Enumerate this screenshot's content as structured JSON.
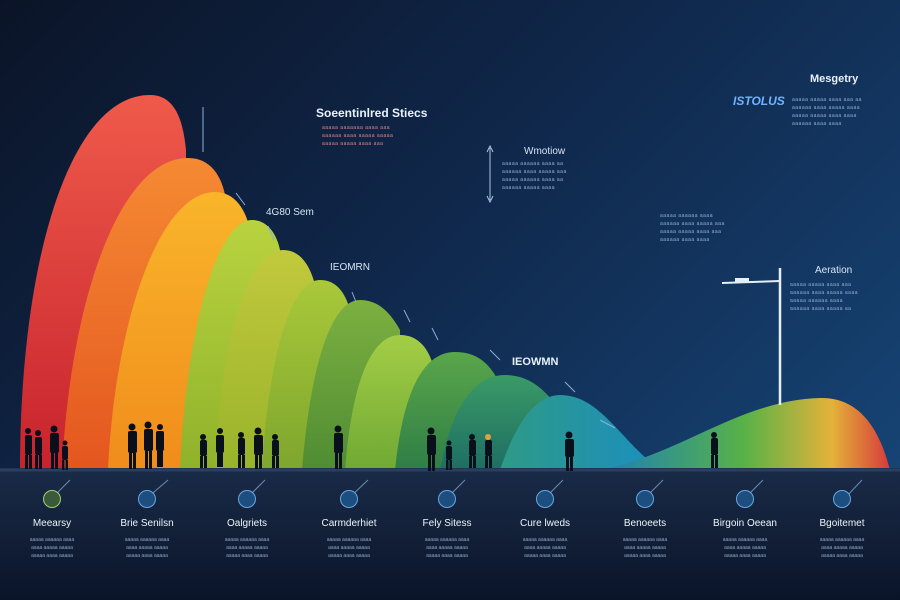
{
  "labels": {
    "top_center": "Soeentinlred Stiecs",
    "top_right_title": "Mesgetry",
    "top_right_brand": "ISTOLUS",
    "mid_value": "4G80 Sem",
    "mid_tag": "IEOMRN",
    "center_title": "Wmotiow",
    "center_big": "IEOWMN",
    "right_mid": "Aeration"
  },
  "notes": {
    "top_center": [
      "aaaaa aaaaaaa aaaa aaa",
      "aaaaaa aaaa aaaaa aaaaa",
      "aaaaa aaaaa aaaa aaa"
    ],
    "top_right": [
      "aaaaa aaaaa aaaa aaa aa",
      "aaaaaa aaaa aaaaa aaaa",
      "aaaaa aaaaa aaaa aaaa",
      "aaaaaa aaaa aaaa"
    ],
    "center": [
      "aaaaa aaaaaa aaaa aa",
      "aaaaaa aaaa aaaaa aaa",
      "aaaaa aaaaaa aaaa aa",
      "aaaaaa aaaaa aaaa"
    ],
    "right_upper": [
      "aaaaa aaaaaa aaaa",
      "aaaaaa aaaa aaaaa aaa",
      "aaaaa aaaaa aaaa aaa",
      "aaaaaa aaaa aaaa"
    ],
    "right_mid": [
      "aaaaa aaaaa aaaa aaa",
      "aaaaaa aaaa aaaaa aaaa",
      "aaaaa aaaaaa aaaa",
      "aaaaaa aaaa aaaaa aa"
    ]
  },
  "steps": [
    {
      "title": "Meearsy",
      "lines": [
        "aaaaa aaaaaa aaaa",
        "aaaa aaaaa aaaaa",
        "aaaaa aaaa aaaaa"
      ]
    },
    {
      "title": "Brie Senilsn",
      "lines": [
        "aaaaa aaaaaa aaaa",
        "aaaa aaaaa aaaaa",
        "aaaaa aaaa aaaaa"
      ]
    },
    {
      "title": "Oalgriets",
      "lines": [
        "aaaaa aaaaaa aaaa",
        "aaaa aaaaa aaaaa",
        "aaaaa aaaa aaaaa"
      ]
    },
    {
      "title": "Carmderhiet",
      "lines": [
        "aaaaa aaaaaa aaaa",
        "aaaa aaaaa aaaaa",
        "aaaaa aaaa aaaaa"
      ]
    },
    {
      "title": "Fely Sitess",
      "lines": [
        "aaaaa aaaaaa aaaa",
        "aaaa aaaaa aaaaa",
        "aaaaa aaaa aaaaa"
      ]
    },
    {
      "title": "Cure lweds",
      "lines": [
        "aaaaa aaaaaa aaaa",
        "aaaa aaaaa aaaaa",
        "aaaaa aaaa aaaaa"
      ]
    },
    {
      "title": "Benoeets",
      "lines": [
        "aaaaa aaaaaa aaaa",
        "aaaa aaaaa aaaaa",
        "aaaaa aaaa aaaaa"
      ]
    },
    {
      "title": "Birgoin Oeean",
      "lines": [
        "aaaaa aaaaaa aaaa",
        "aaaa aaaaa aaaaa",
        "aaaaa aaaa aaaaa"
      ]
    },
    {
      "title": "Bgoitemet",
      "lines": [
        "aaaaa aaaaaa aaaa",
        "aaaa aaaaa aaaaa",
        "aaaaa aaaa aaaaa"
      ]
    }
  ],
  "colors": {
    "wave_1": "#e8453a",
    "wave_2": "#f07a2a",
    "wave_3": "#f6a623",
    "wave_4": "#a9c83a",
    "wave_5": "#8fbf3a",
    "wave_6": "#6fae3c",
    "wave_7": "#4c9a3e",
    "wave_8": "#2f8a62",
    "wave_9": "#1f7fa3",
    "baseline": "#1e2e4a"
  }
}
